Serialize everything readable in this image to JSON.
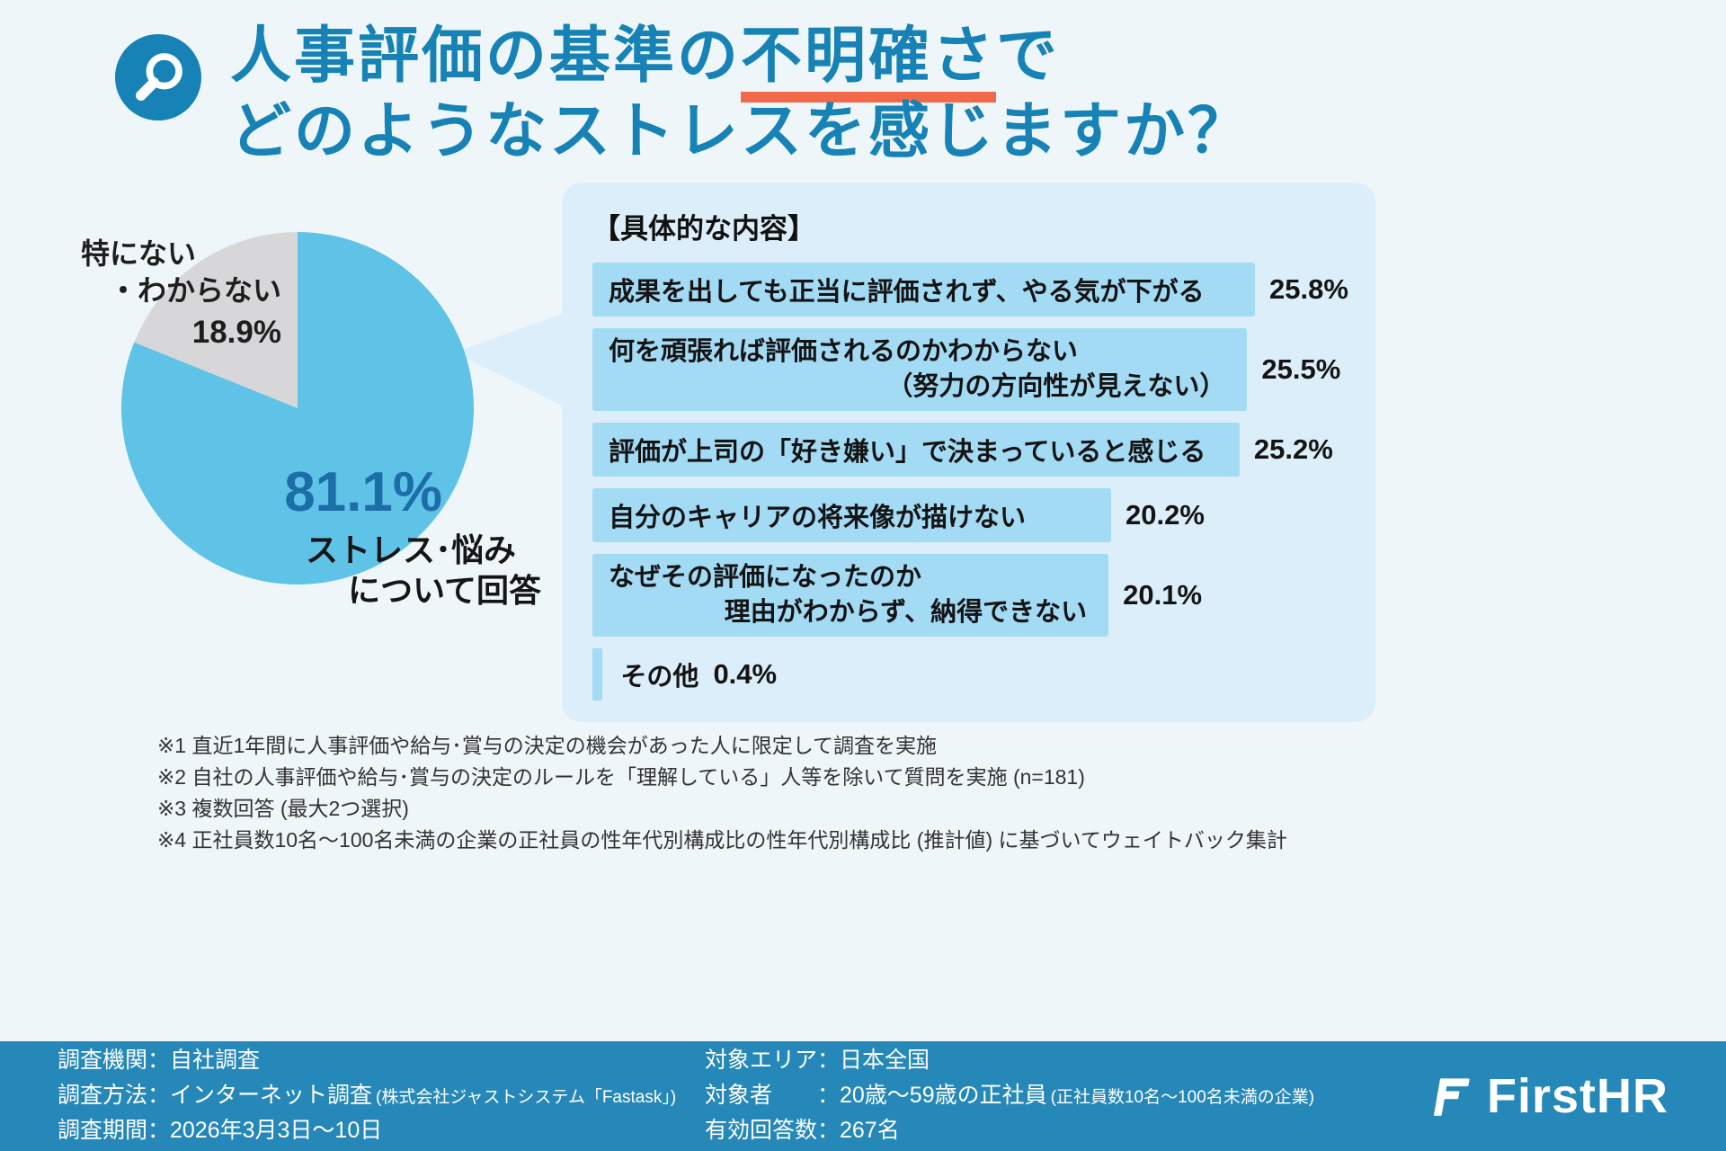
{
  "colors": {
    "accent_blue": "#1682b6",
    "underline_orange": "#f2694a",
    "pie_blue": "#5fc2e7",
    "pie_gray": "#d7d7d9",
    "panel_bg": "#dceefa",
    "bar_bg": "#a3daf4",
    "footer_bg": "#2688b8",
    "pct_dark_blue": "#1c6ea6"
  },
  "header": {
    "title1_pre": "人事評価の基準の",
    "title1_em": "不明確さ",
    "title1_post": "で",
    "title2": "どのようなストレスを感じますか？"
  },
  "chart_data": [
    {
      "type": "pie",
      "title": "人事評価の基準の不明確さでストレスを感じるか",
      "slices": [
        {
          "label": "ストレス・悩みについて回答",
          "value": 81.1,
          "color": "#5fc2e7"
        },
        {
          "label": "特にない・わからない",
          "value": 18.9,
          "color": "#d7d7d9"
        }
      ],
      "start_angle_deg": 0,
      "direction": "clockwise"
    },
    {
      "type": "bar",
      "title": "【具体的な内容】",
      "orientation": "horizontal",
      "categories": [
        "成果を出しても正当に評価されず、やる気が下がる",
        "何を頑張れば評価されるのかわからない（努力の方向性が見えない）",
        "評価が上司の「好き嫌い」で決まっていると感じる",
        "自分のキャリアの将来像が描けない",
        "なぜその評価になったのか理由がわからず、納得できない",
        "その他"
      ],
      "values": [
        25.8,
        25.5,
        25.2,
        20.2,
        20.1,
        0.4
      ],
      "unit": "%",
      "xlim": [
        0,
        25.8
      ],
      "grid": false,
      "legend": "none"
    }
  ],
  "pie": {
    "main_pct": "81.1%",
    "main_line1": "ストレス･悩み",
    "main_line2": "について回答",
    "other_line1": "特にない",
    "other_line2": "・わからない",
    "other_pct": "18.9%"
  },
  "panel": {
    "title": "【具体的な内容】",
    "scale_max": 25.8,
    "bars": [
      {
        "label": "成果を出しても正当に評価されず、やる気が下がる",
        "label2": "",
        "pct": "25.8%",
        "value": 25.8
      },
      {
        "label": "何を頑張れば評価されるのかわからない",
        "label2": "（努力の方向性が見えない）",
        "pct": "25.5%",
        "value": 25.5
      },
      {
        "label": "評価が上司の「好き嫌い」で決まっていると感じる",
        "label2": "",
        "pct": "25.2%",
        "value": 25.2
      },
      {
        "label": "自分のキャリアの将来像が描けない",
        "label2": "",
        "pct": "20.2%",
        "value": 20.2
      },
      {
        "label": "なぜその評価になったのか",
        "label2": "理由がわからず、納得できない",
        "pct": "20.1%",
        "value": 20.1
      },
      {
        "label": "その他",
        "label2": "",
        "pct": "0.4%",
        "value": 0.4
      }
    ]
  },
  "footnotes": [
    "※1 直近1年間に人事評価や給与･賞与の決定の機会があった人に限定して調査を実施",
    "※2 自社の人事評価や給与･賞与の決定のルールを「理解している」人等を除いて質問を実施 (n=181)",
    "※3 複数回答 (最大2つ選択)",
    "※4 正社員数10名〜100名未満の企業の正社員の性年代別構成比の性年代別構成比 (推計値) に基づいてウェイトバック集計"
  ],
  "footer": {
    "left": [
      {
        "text": "調査機関：自社調査",
        "note": ""
      },
      {
        "text": "調査方法：インターネット調査",
        "note": "(株式会社ジャストシステム「Fastask」)"
      },
      {
        "text": "調査期間：2026年3月3日〜10日",
        "note": ""
      }
    ],
    "right": [
      {
        "text": "対象エリア：日本全国",
        "note": ""
      },
      {
        "text": "対象者　　：20歳〜59歳の正社員",
        "note": "(正社員数10名〜100名未満の企業)"
      },
      {
        "text": "有効回答数：267名",
        "note": ""
      }
    ],
    "logo_text": "FirstHR"
  }
}
